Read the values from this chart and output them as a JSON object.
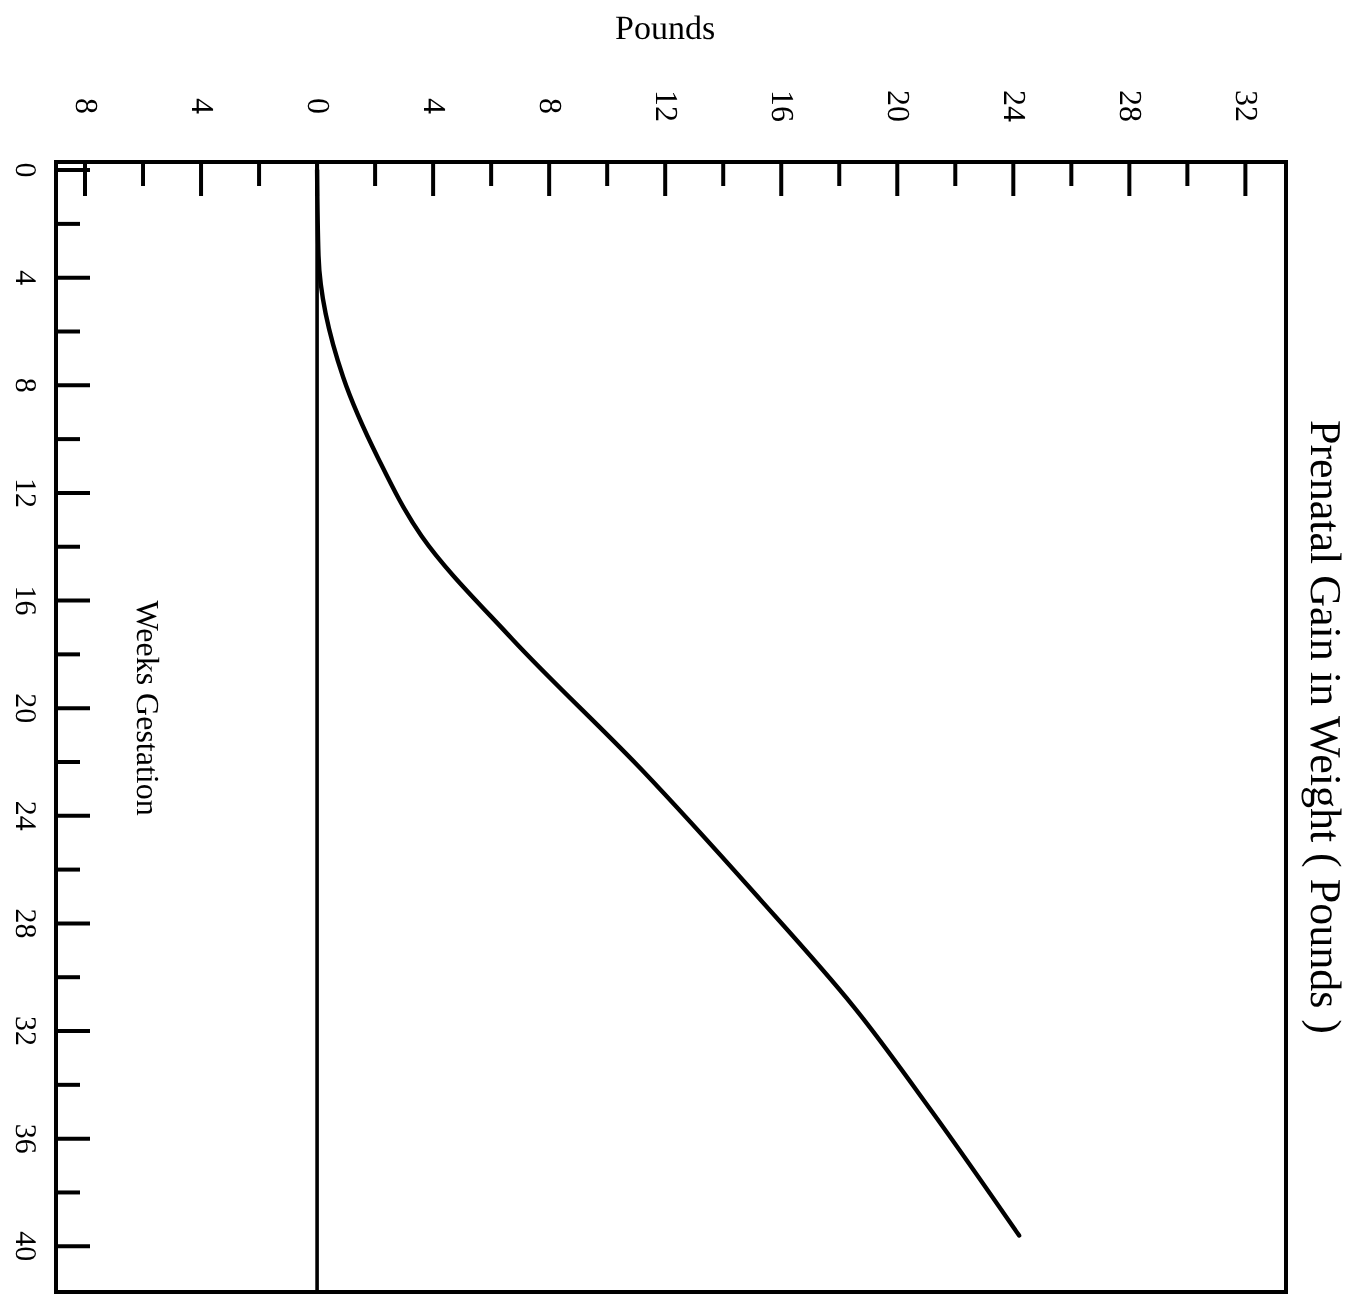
{
  "chart_data": {
    "type": "line",
    "title": "Prenatal Gain in Weight ( Pounds )",
    "xlabel": "Pounds",
    "ylabel": "Weeks Gestation",
    "xlim": [
      -9,
      33.4
    ],
    "ylim": [
      41.7,
      -0.3
    ],
    "xticks": [
      {
        "value": -8,
        "label": "8"
      },
      {
        "value": -6,
        "label": null
      },
      {
        "value": -4,
        "label": "4"
      },
      {
        "value": -2,
        "label": null
      },
      0,
      {
        "value": 2,
        "label": null
      },
      4,
      {
        "value": 6,
        "label": null
      },
      8,
      {
        "value": 10,
        "label": null
      },
      12,
      {
        "value": 14,
        "label": null
      },
      16,
      {
        "value": 18,
        "label": null
      },
      20,
      {
        "value": 22,
        "label": null
      },
      24,
      {
        "value": 26,
        "label": null
      },
      28,
      {
        "value": 30,
        "label": null
      },
      32
    ],
    "yticks": [
      0,
      {
        "value": 2,
        "label": null
      },
      4,
      {
        "value": 6,
        "label": null
      },
      8,
      {
        "value": 10,
        "label": null
      },
      12,
      {
        "value": 14,
        "label": null
      },
      16,
      {
        "value": 18,
        "label": null
      },
      20,
      {
        "value": 22,
        "label": null
      },
      24,
      {
        "value": 26,
        "label": null
      },
      28,
      {
        "value": 30,
        "label": null
      },
      32,
      {
        "value": 34,
        "label": null
      },
      36,
      {
        "value": 38,
        "label": null
      },
      40
    ],
    "ref_lines": [
      {
        "axis": "x",
        "value": 0,
        "color": "#000000"
      }
    ],
    "series": [
      {
        "color": "#000000",
        "x": [
          0,
          0.05,
          0.9,
          2.1,
          3.6,
          6.7,
          11.2,
          15.1,
          18.5,
          21.2,
          24.2
        ],
        "values": [
          0,
          3.2,
          7.7,
          10.7,
          13.6,
          17.4,
          22.3,
          26.9,
          31.1,
          35,
          39.6
        ]
      }
    ],
    "grid": false,
    "marker": "none",
    "line_style": "solid"
  }
}
